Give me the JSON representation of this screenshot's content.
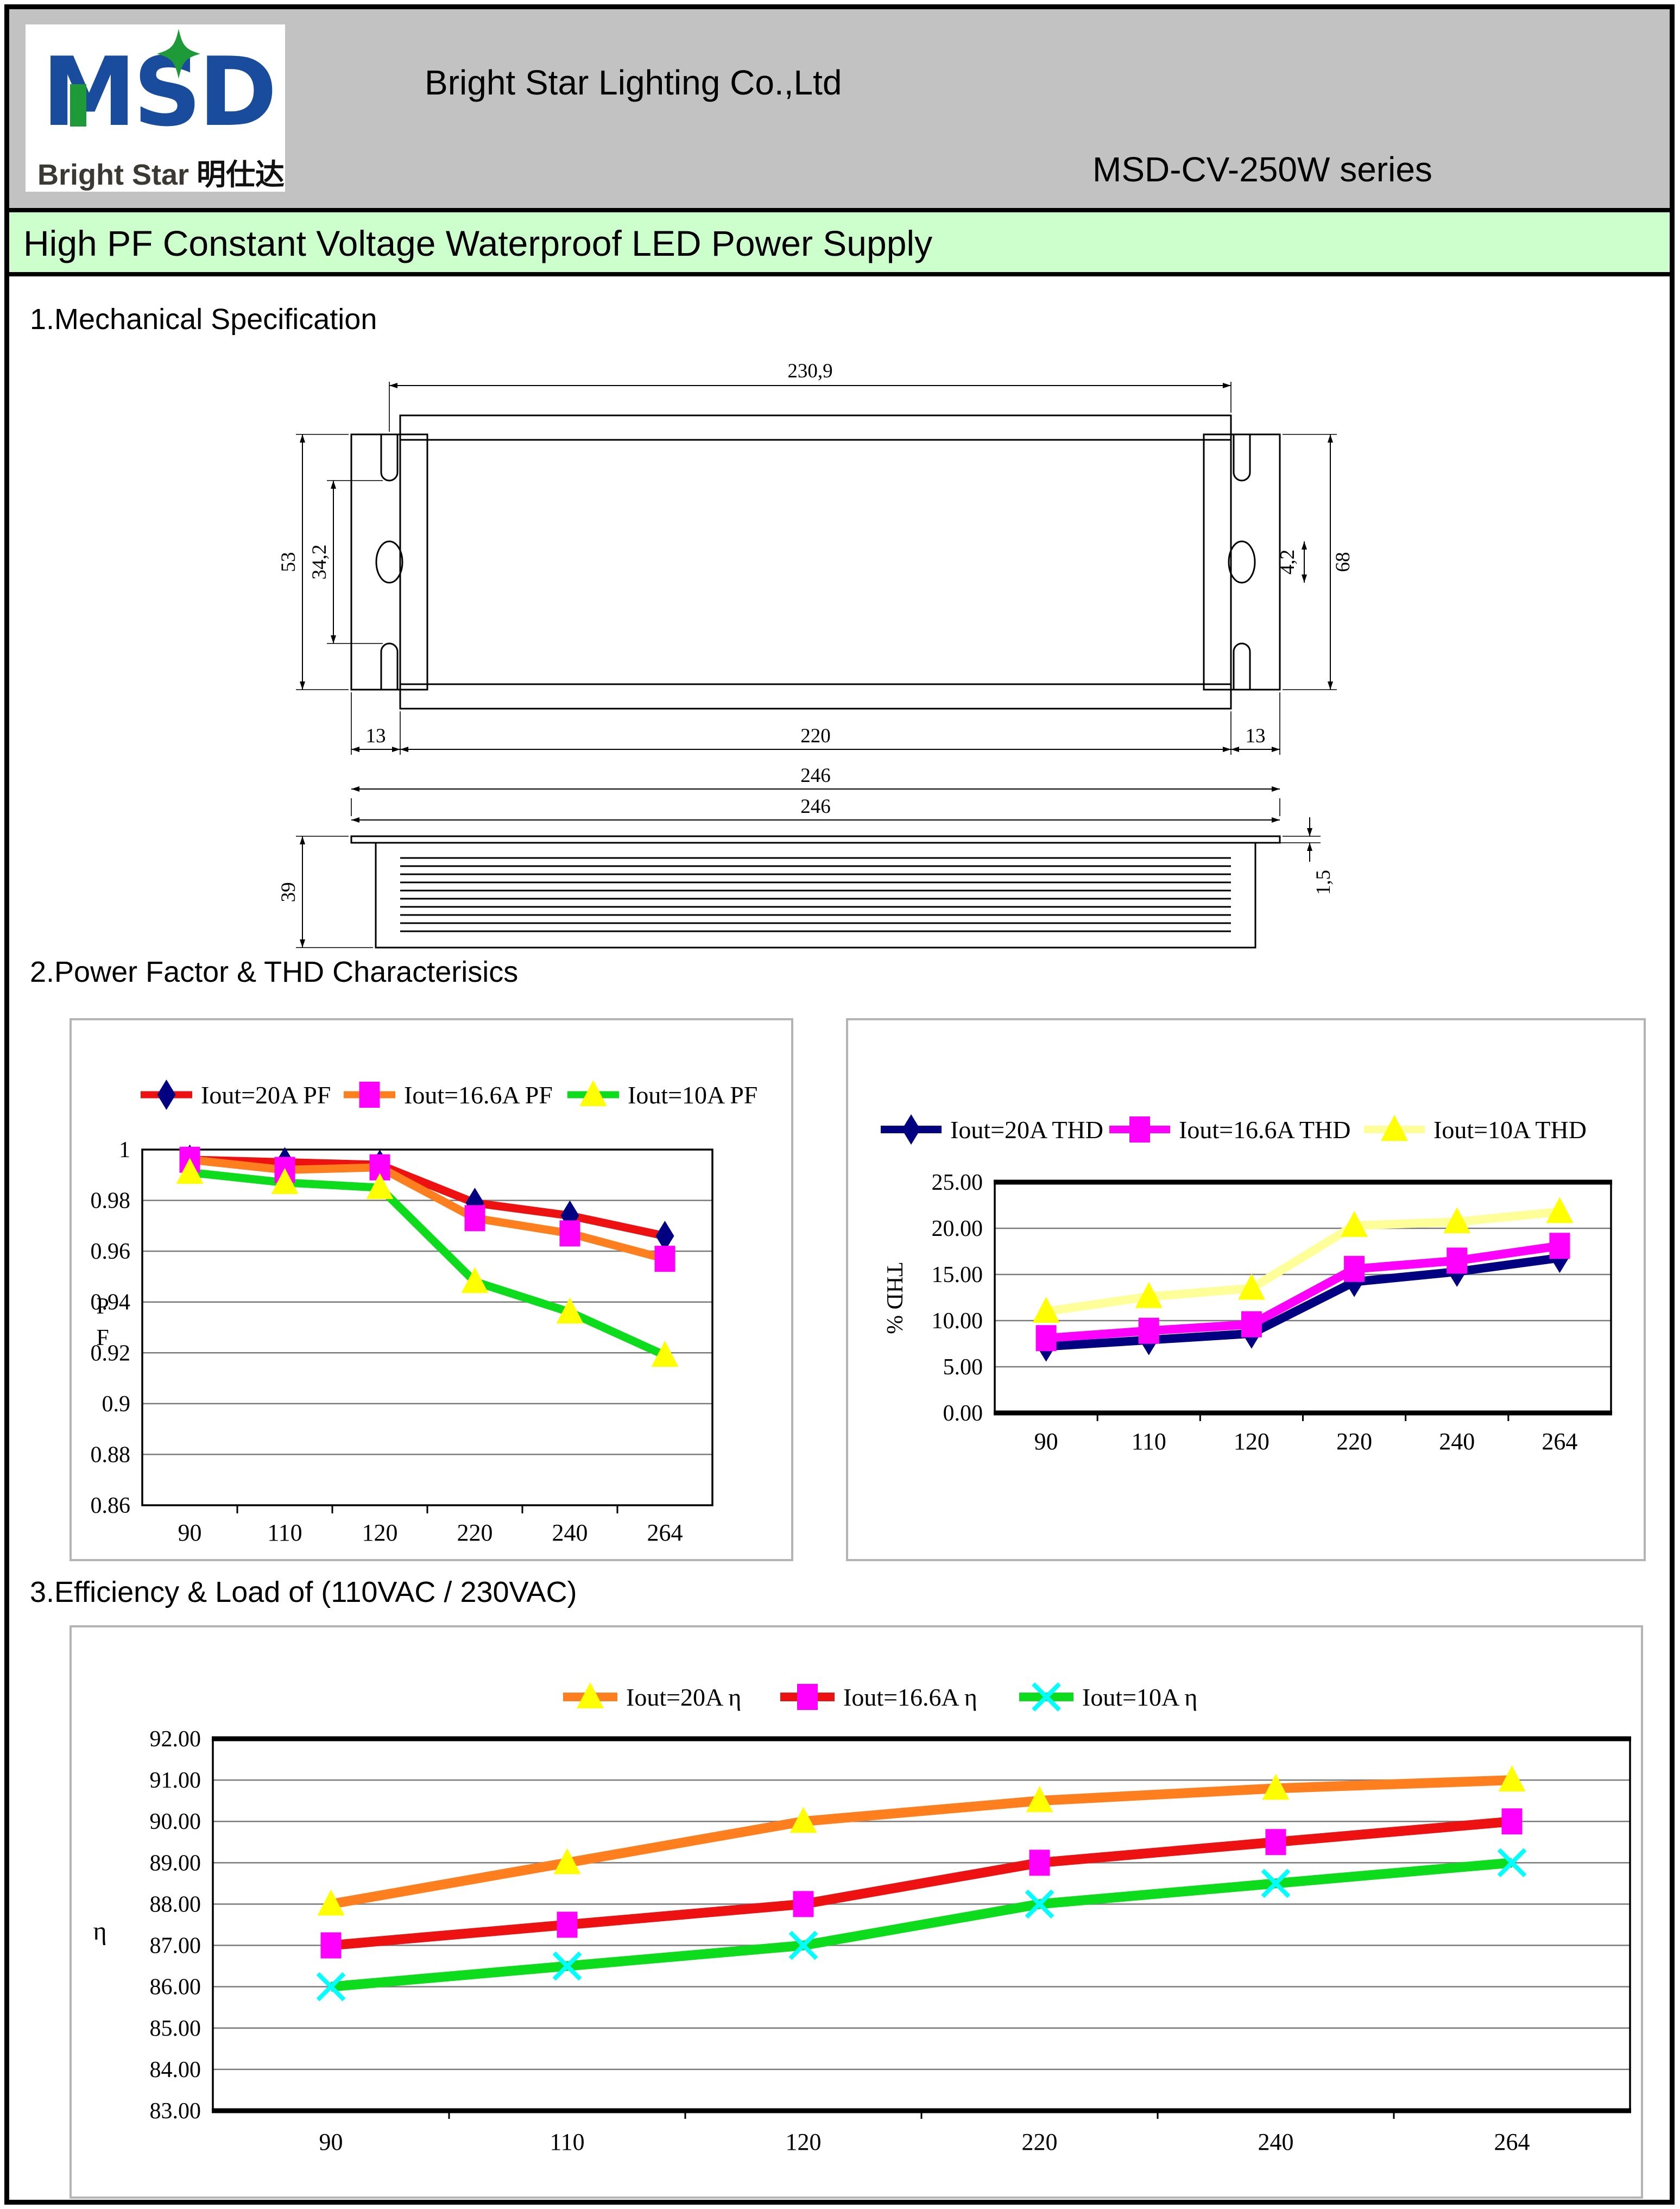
{
  "header": {
    "company": "Bright Star Lighting Co.,Ltd",
    "series": "MSD-CV-250W series",
    "logo": {
      "wordmark": "MSD",
      "sub_en": "Bright Star",
      "sub_cn": "明仕达"
    }
  },
  "title_bar": "High PF Constant Voltage Waterproof LED Power Supply",
  "sections": {
    "mechanical": "1.Mechanical Specification",
    "pf_thd": "2.Power Factor & THD Characterisics",
    "efficiency": "3.Efficiency & Load of (110VAC / 230VAC)"
  },
  "mech": {
    "dims": {
      "top_width": "230,9",
      "bracket_height": "53",
      "slot_span": "34,2",
      "right_height": "68",
      "slot_width": "4,2",
      "overhang_left": "13",
      "body_length": "220",
      "overhang_right": "13",
      "total_length": "246",
      "side_total": "246",
      "side_height": "39",
      "flange_thickness": "1,5"
    }
  },
  "chart_data": [
    {
      "id": "pf",
      "type": "line",
      "title": "",
      "xlabel": "",
      "ylabel": "PF",
      "ylabel_style": "stacked",
      "categories": [
        "90",
        "110",
        "120",
        "220",
        "240",
        "264"
      ],
      "ylim": [
        0.86,
        1.0
      ],
      "grid": true,
      "legend_position": "top",
      "yticks": [
        {
          "v": 1.0,
          "label": "1"
        },
        {
          "v": 0.98,
          "label": "0.98"
        },
        {
          "v": 0.96,
          "label": "0.96"
        },
        {
          "v": 0.94,
          "label": "0.94"
        },
        {
          "v": 0.92,
          "label": "0.92"
        },
        {
          "v": 0.9,
          "label": "0.9"
        },
        {
          "v": 0.88,
          "label": "0.88"
        },
        {
          "v": 0.86,
          "label": "0.86"
        }
      ],
      "series": [
        {
          "name": "Iout=20A PF",
          "line_color": "#ee1111",
          "marker": "diamond",
          "marker_color": "#000080",
          "values": [
            0.996,
            0.995,
            0.994,
            0.979,
            0.974,
            0.966
          ]
        },
        {
          "name": "Iout=16.6A PF",
          "line_color": "#ff7f1f",
          "marker": "square",
          "marker_color": "#ff00ff",
          "values": [
            0.996,
            0.992,
            0.993,
            0.973,
            0.967,
            0.957
          ]
        },
        {
          "name": "Iout=10A PF",
          "line_color": "#0ddc1c",
          "marker": "triangle",
          "marker_color": "#ffff00",
          "values": [
            0.991,
            0.987,
            0.985,
            0.948,
            0.936,
            0.919
          ]
        }
      ]
    },
    {
      "id": "thd",
      "type": "line",
      "title": "",
      "xlabel": "",
      "ylabel": "THD %",
      "ylabel_style": "rotated",
      "categories": [
        "90",
        "110",
        "120",
        "220",
        "240",
        "264"
      ],
      "ylim": [
        0,
        25
      ],
      "grid": true,
      "legend_position": "top",
      "yticks": [
        {
          "v": 25,
          "label": "25.00"
        },
        {
          "v": 20,
          "label": "20.00"
        },
        {
          "v": 15,
          "label": "15.00"
        },
        {
          "v": 10,
          "label": "10.00"
        },
        {
          "v": 5,
          "label": "5.00"
        },
        {
          "v": 0,
          "label": "0.00"
        }
      ],
      "series": [
        {
          "name": "Iout=20A THD",
          "line_color": "#000080",
          "marker": "diamond",
          "marker_color": "#000080",
          "values": [
            7.2,
            7.9,
            8.6,
            14.2,
            15.3,
            16.8
          ]
        },
        {
          "name": "Iout=16.6A THD",
          "line_color": "#ff00ff",
          "marker": "square",
          "marker_color": "#ff00ff",
          "values": [
            8.1,
            8.9,
            9.6,
            15.6,
            16.5,
            18.1
          ]
        },
        {
          "name": "Iout=10A THD",
          "line_color": "#ffff99",
          "marker": "triangle",
          "marker_color": "#ffff00",
          "values": [
            11.0,
            12.6,
            13.5,
            20.3,
            20.7,
            21.8
          ]
        }
      ]
    },
    {
      "id": "efficiency",
      "type": "line",
      "title": "",
      "xlabel": "",
      "ylabel": "η",
      "ylabel_style": "plain",
      "categories": [
        "90",
        "110",
        "120",
        "220",
        "240",
        "264"
      ],
      "ylim": [
        83,
        92
      ],
      "grid": true,
      "legend_position": "top-right",
      "yticks": [
        {
          "v": 92,
          "label": "92.00"
        },
        {
          "v": 91,
          "label": "91.00"
        },
        {
          "v": 90,
          "label": "90.00"
        },
        {
          "v": 89,
          "label": "89.00"
        },
        {
          "v": 88,
          "label": "88.00"
        },
        {
          "v": 87,
          "label": "87.00"
        },
        {
          "v": 86,
          "label": "86.00"
        },
        {
          "v": 85,
          "label": "85.00"
        },
        {
          "v": 84,
          "label": "84.00"
        },
        {
          "v": 83,
          "label": "83.00"
        }
      ],
      "series": [
        {
          "name": "Iout=20A  η",
          "line_color": "#ff7f1f",
          "marker": "triangle",
          "marker_color": "#ffff00",
          "values": [
            88,
            89,
            90,
            90.5,
            90.8,
            91
          ]
        },
        {
          "name": "Iout=16.6A  η",
          "line_color": "#ee1111",
          "marker": "square",
          "marker_color": "#ff00ff",
          "values": [
            87,
            87.5,
            88,
            89,
            89.5,
            90
          ]
        },
        {
          "name": "Iout=10A  η",
          "line_color": "#0ddc1c",
          "marker": "x",
          "marker_color": "#00ffff",
          "values": [
            86,
            86.5,
            87,
            88,
            88.5,
            89
          ]
        }
      ]
    }
  ]
}
